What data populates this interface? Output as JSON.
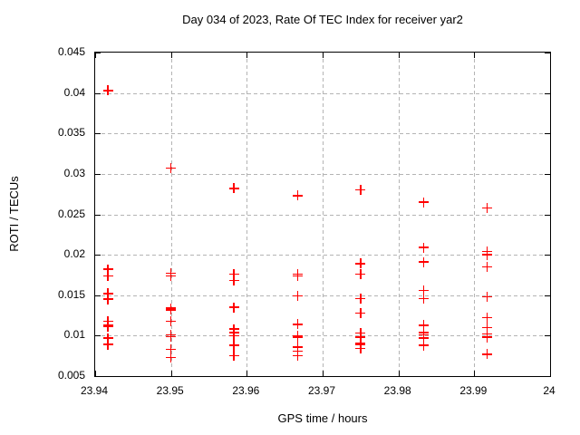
{
  "title": "Day 034 of 2023, Rate Of TEC Index for receiver yar2",
  "colors": {
    "marker": "#ff0000",
    "grid": "#b4b4b4",
    "border": "#000000"
  },
  "chart_data": {
    "type": "scatter",
    "title": "Day 034 of 2023, Rate Of TEC Index for receiver yar2",
    "xlabel": "GPS time / hours",
    "ylabel": "ROTI / TECUs",
    "xlim": [
      23.94,
      24
    ],
    "ylim": [
      0.005,
      0.045
    ],
    "grid": true,
    "legend": "none",
    "marker": "plus",
    "marker_color": "#ff0000",
    "xticks": {
      "values": [
        23.94,
        23.95,
        23.96,
        23.97,
        23.98,
        23.99,
        24
      ],
      "labels": [
        "23.94",
        "23.95",
        "23.96",
        "23.97",
        "23.98",
        "23.99",
        "24"
      ]
    },
    "yticks": {
      "values": [
        0.005,
        0.01,
        0.015,
        0.02,
        0.025,
        0.03,
        0.035,
        0.04,
        0.045
      ],
      "labels": [
        "0.005",
        "0.01",
        "0.015",
        "0.02",
        "0.025",
        "0.03",
        "0.035",
        "0.04",
        "0.045"
      ]
    },
    "series": [
      {
        "name": "ROTI",
        "points": [
          [
            23.9417,
            0.0403
          ],
          [
            23.9417,
            0.0182
          ],
          [
            23.9417,
            0.0174
          ],
          [
            23.9417,
            0.0152
          ],
          [
            23.9417,
            0.0145
          ],
          [
            23.9417,
            0.0118
          ],
          [
            23.9417,
            0.0113
          ],
          [
            23.9417,
            0.0111
          ],
          [
            23.9417,
            0.0097
          ],
          [
            23.9417,
            0.0089
          ],
          [
            23.95,
            0.0307
          ],
          [
            23.95,
            0.0177
          ],
          [
            23.95,
            0.0174
          ],
          [
            23.95,
            0.0134
          ],
          [
            23.95,
            0.0132
          ],
          [
            23.95,
            0.0118
          ],
          [
            23.95,
            0.0101
          ],
          [
            23.95,
            0.0099
          ],
          [
            23.95,
            0.0083
          ],
          [
            23.95,
            0.0073
          ],
          [
            23.9583,
            0.0282
          ],
          [
            23.9583,
            0.0176
          ],
          [
            23.9583,
            0.0168
          ],
          [
            23.9583,
            0.0135
          ],
          [
            23.9583,
            0.0108
          ],
          [
            23.9583,
            0.0104
          ],
          [
            23.9583,
            0.01
          ],
          [
            23.9583,
            0.0088
          ],
          [
            23.9583,
            0.0075
          ],
          [
            23.9667,
            0.0273
          ],
          [
            23.9667,
            0.0176
          ],
          [
            23.9667,
            0.0174
          ],
          [
            23.9667,
            0.0149
          ],
          [
            23.9667,
            0.0114
          ],
          [
            23.9667,
            0.01
          ],
          [
            23.9667,
            0.0098
          ],
          [
            23.9667,
            0.0086
          ],
          [
            23.9667,
            0.0081
          ],
          [
            23.9667,
            0.0075
          ],
          [
            23.975,
            0.028
          ],
          [
            23.975,
            0.0189
          ],
          [
            23.975,
            0.0176
          ],
          [
            23.975,
            0.0146
          ],
          [
            23.975,
            0.0128
          ],
          [
            23.975,
            0.0103
          ],
          [
            23.975,
            0.0098
          ],
          [
            23.975,
            0.0091
          ],
          [
            23.975,
            0.0089
          ],
          [
            23.975,
            0.0084
          ],
          [
            23.9833,
            0.0265
          ],
          [
            23.9833,
            0.0209
          ],
          [
            23.9833,
            0.0191
          ],
          [
            23.9833,
            0.0156
          ],
          [
            23.9833,
            0.0146
          ],
          [
            23.9833,
            0.0113
          ],
          [
            23.9833,
            0.0104
          ],
          [
            23.9833,
            0.0101
          ],
          [
            23.9833,
            0.0097
          ],
          [
            23.9833,
            0.0088
          ],
          [
            23.9917,
            0.0258
          ],
          [
            23.9917,
            0.0204
          ],
          [
            23.9917,
            0.02
          ],
          [
            23.9917,
            0.0185
          ],
          [
            23.9917,
            0.0148
          ],
          [
            23.9917,
            0.0122
          ],
          [
            23.9917,
            0.011
          ],
          [
            23.9917,
            0.0102
          ],
          [
            23.9917,
            0.0098
          ],
          [
            23.9917,
            0.0077
          ]
        ]
      }
    ]
  }
}
